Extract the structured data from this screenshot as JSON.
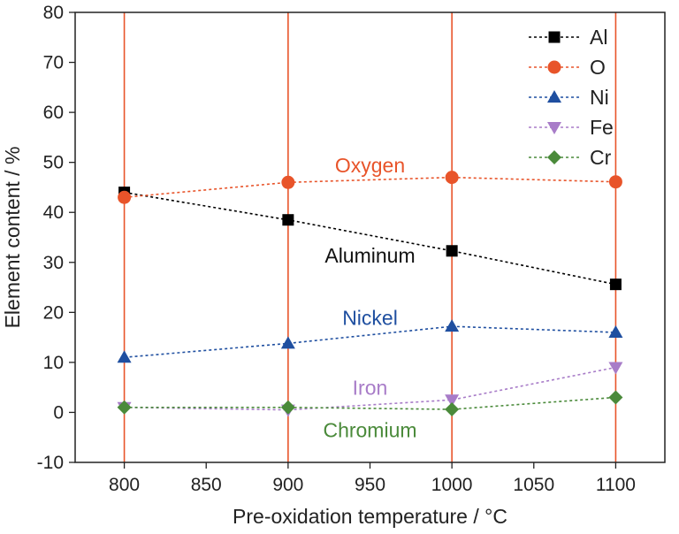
{
  "chart_data": {
    "type": "line",
    "xlabel": "Pre-oxidation temperature / °C",
    "ylabel": "Element content / %",
    "xlim": [
      770,
      1130
    ],
    "ylim": [
      -10,
      80
    ],
    "xticks": [
      800,
      850,
      900,
      950,
      1000,
      1050,
      1100
    ],
    "yticks": [
      -10,
      0,
      10,
      20,
      30,
      40,
      50,
      60,
      70,
      80
    ],
    "vertical_reference_lines": [
      800,
      900,
      1000,
      1100
    ],
    "grid": false,
    "legend_position": "top-right",
    "x": [
      800,
      900,
      1000,
      1100
    ],
    "series": [
      {
        "name": "Al",
        "color": "#000000",
        "marker": "square",
        "values": [
          44.0,
          38.5,
          32.3,
          25.6
        ],
        "annotation": "Aluminum"
      },
      {
        "name": "O",
        "color": "#e8542a",
        "marker": "circle",
        "values": [
          43.0,
          46.0,
          47.0,
          46.1
        ],
        "annotation": "Oxygen"
      },
      {
        "name": "Ni",
        "color": "#1f4fa0",
        "marker": "triangle-up",
        "values": [
          11.0,
          13.8,
          17.2,
          16.0
        ],
        "annotation": "Nickel"
      },
      {
        "name": "Fe",
        "color": "#a87cc8",
        "marker": "triangle-down",
        "values": [
          1.0,
          0.5,
          2.5,
          9.0
        ],
        "annotation": "Iron"
      },
      {
        "name": "Cr",
        "color": "#4a8a3a",
        "marker": "diamond",
        "values": [
          1.0,
          1.0,
          0.6,
          3.0
        ],
        "annotation": "Chromium"
      }
    ]
  }
}
